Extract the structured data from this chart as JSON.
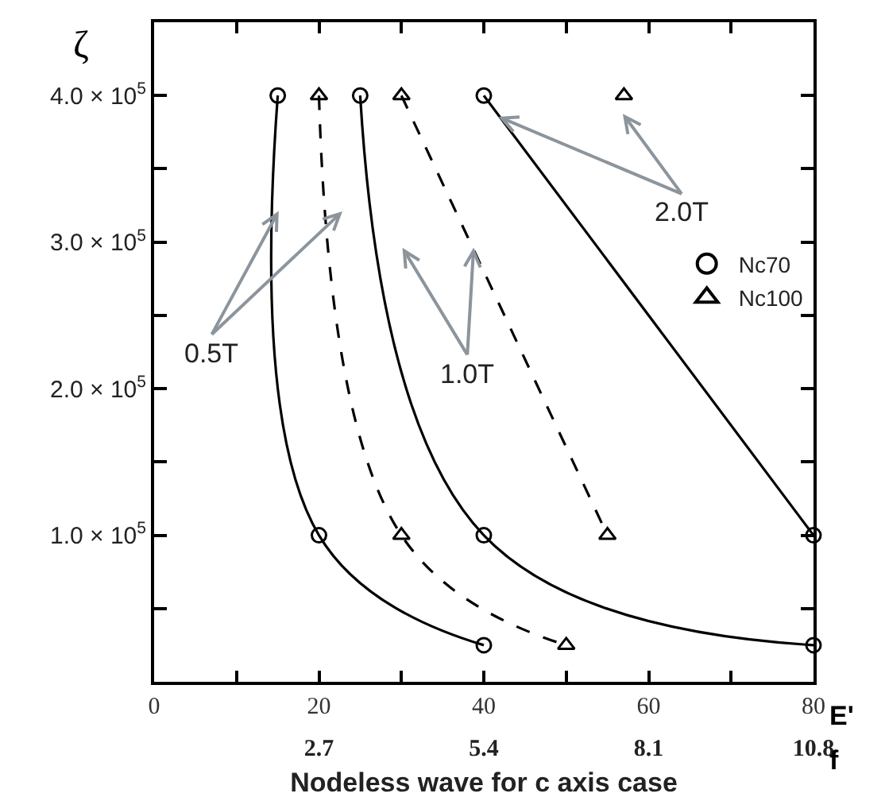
{
  "chart_data": {
    "type": "line",
    "title": "Nodeless wave for c axis case",
    "xlabel": "E'",
    "ylabel": "ζ",
    "x2label": "f",
    "xlim": [
      0,
      80
    ],
    "xticks": [
      0,
      {
        "value": 10,
        "label": null
      },
      20,
      {
        "value": 30,
        "label": null
      },
      40,
      {
        "value": 50,
        "label": null
      },
      60,
      {
        "value": 70,
        "label": null
      },
      80
    ],
    "x2lim": [
      0,
      10.8
    ],
    "x2ticks": [
      2.7,
      5.4,
      8.1,
      10.8
    ],
    "ylim": [
      0,
      450000
    ],
    "yticks": [
      {
        "value": 50000,
        "label": null
      },
      {
        "value": 100000,
        "label": "1.0 × 10$^{5}$"
      },
      {
        "value": 150000,
        "label": null
      },
      {
        "value": 200000,
        "label": "2.0 × 10$^{5}$"
      },
      {
        "value": 250000,
        "label": null
      },
      {
        "value": 300000,
        "label": "3.0 × 10$^{5}$"
      },
      {
        "value": 350000,
        "label": null
      },
      {
        "value": 400000,
        "label": "4.0 × 10$^{5}$"
      }
    ],
    "grid": false,
    "legend": "right",
    "series": [
      {
        "name": "Nc70",
        "color": "#000000",
        "marker": "circle",
        "line_style": "solid",
        "x": [
          15,
          20,
          40
        ],
        "values": [
          400000,
          100000,
          25000
        ]
      },
      {
        "name": "Nc100",
        "color": "#000000",
        "marker": "triangle",
        "line_style": "dashed",
        "x": [
          20,
          30,
          50
        ],
        "values": [
          400000,
          100000,
          25000
        ]
      },
      {
        "color": "#000000",
        "marker": "circle",
        "line_style": "solid",
        "x": [
          25,
          40,
          80
        ],
        "values": [
          400000,
          100000,
          25000
        ]
      },
      {
        "color": "#000000",
        "marker": "triangle",
        "line_style": "dashed",
        "x": [
          30,
          55
        ],
        "values": [
          400000,
          100000
        ]
      },
      {
        "color": "#000000",
        "marker": "circle",
        "line_style": "solid",
        "x": [
          40,
          80
        ],
        "values": [
          400000,
          100000
        ]
      },
      {
        "color": "#000000",
        "marker": "triangle",
        "line_style": "dashed",
        "x": [
          57
        ],
        "values": [
          400000
        ]
      }
    ],
    "annotations": [
      {
        "text": "0.5T",
        "x": 15,
        "y": 320000
      },
      {
        "text": "1.0T",
        "x": 38.75,
        "y": 295000
      },
      {
        "text": "2.0T",
        "x": 42,
        "y": 385000
      }
    ]
  }
}
